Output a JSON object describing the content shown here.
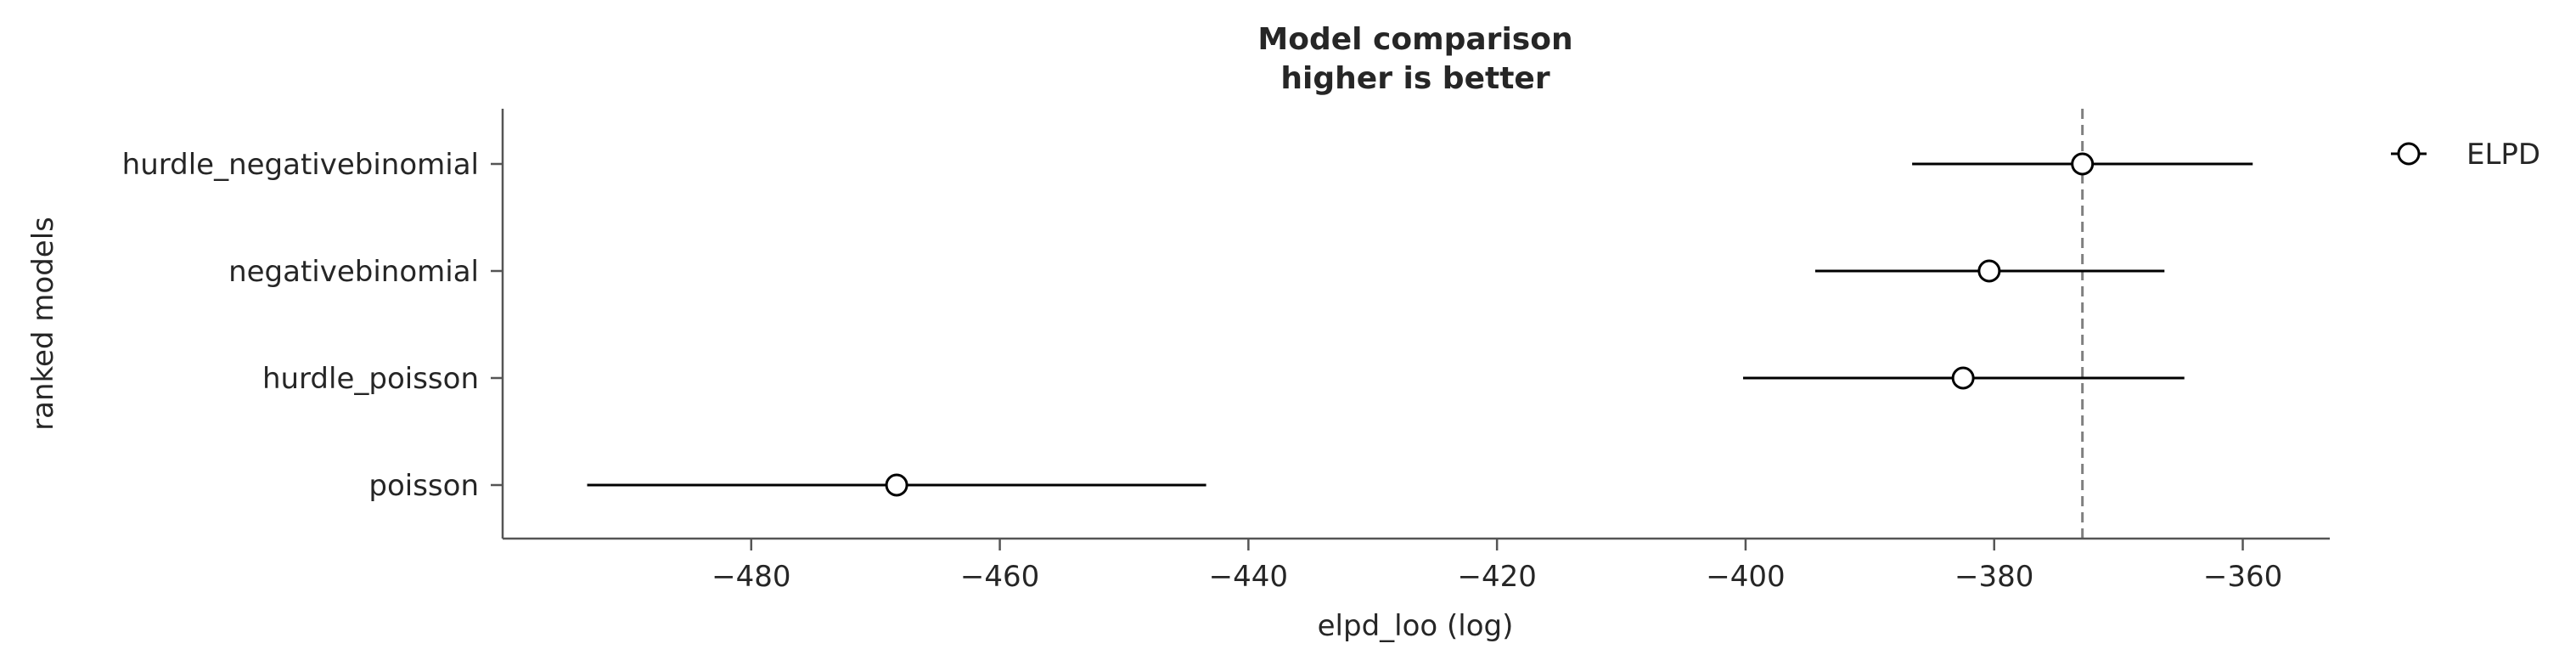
{
  "chart_data": {
    "type": "scatter",
    "title": "Model comparison",
    "subtitle": "higher is better",
    "xlabel": "elpd_loo (log)",
    "ylabel": "ranked models",
    "xlim": [
      -500,
      -353
    ],
    "xticks": [
      -480,
      -460,
      -440,
      -420,
      -400,
      -380,
      -360
    ],
    "xtick_labels": [
      "−480",
      "−460",
      "−440",
      "−420",
      "−400",
      "−380",
      "−360"
    ],
    "grid": false,
    "legend_position": "top-right",
    "series": [
      {
        "name": "ELPD",
        "models": [
          "hurdle_negativebinomial",
          "negativebinomial",
          "hurdle_poisson",
          "poisson"
        ],
        "elpd": [
          -372.9,
          -380.4,
          -382.5,
          -468.3
        ],
        "err_low": [
          -386.6,
          -394.4,
          -400.2,
          -493.2
        ],
        "err_high": [
          -359.2,
          -366.3,
          -364.7,
          -443.4
        ]
      }
    ],
    "reference_line": {
      "x": -372.9,
      "style": "dashed",
      "color": "#808080"
    },
    "colors": {
      "marker_edge": "#000000",
      "marker_face": "#ffffff",
      "axis": "#555555",
      "text": "#262626"
    }
  }
}
